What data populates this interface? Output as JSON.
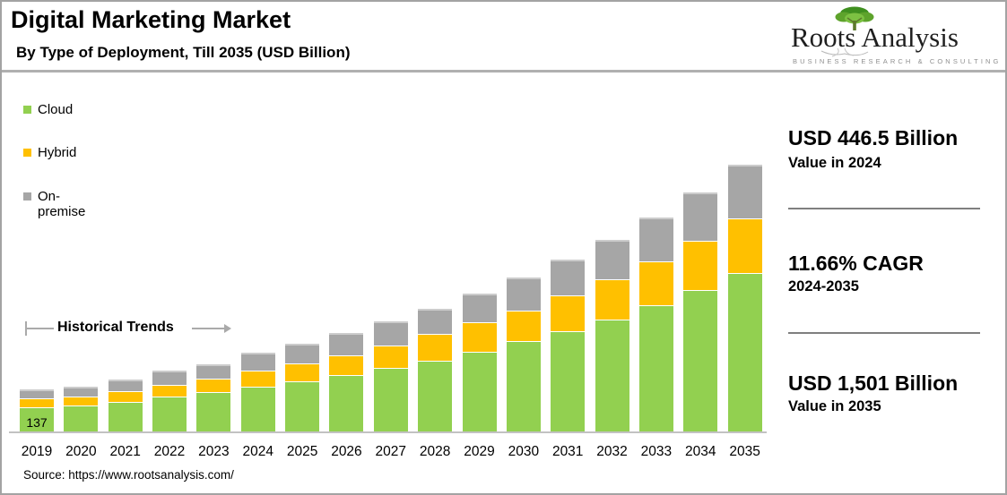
{
  "header": {
    "title": "Digital Marketing Market",
    "subtitle": "By Type of Deployment, Till 2035 (USD Billion)"
  },
  "logo": {
    "name": "Roots Analysis",
    "tagline": "BUSINESS RESEARCH & CONSULTING",
    "tree_color": "#6aa832"
  },
  "legend": [
    {
      "label": "Cloud",
      "color": "#92D050"
    },
    {
      "label": "Hybrid",
      "color": "#FFC000"
    },
    {
      "label": "On-premise",
      "color": "#A6A6A6"
    }
  ],
  "annotations": {
    "historical_trends": "Historical Trends",
    "first_bar_value_label": "137"
  },
  "stats": [
    {
      "value": "USD 446.5 Billion",
      "caption": "Value in 2024"
    },
    {
      "value": "11.66% CAGR",
      "caption": "2024-2035"
    },
    {
      "value": "USD 1,501 Billion",
      "caption": "Value in 2035"
    }
  ],
  "source": "Source: https://www.rootsanalysis.com/",
  "chart_data": {
    "type": "bar",
    "stacked": true,
    "title": "Digital Marketing Market, By Type of Deployment, Till 2035 (USD Billion)",
    "unit": "USD Billion",
    "categories": [
      2019,
      2020,
      2021,
      2022,
      2023,
      2024,
      2025,
      2026,
      2027,
      2028,
      2029,
      2030,
      2031,
      2032,
      2033,
      2034,
      2035
    ],
    "series": [
      {
        "name": "Cloud",
        "color": "#92D050",
        "values": [
          137,
          145,
          165,
          195,
          220,
          250,
          279,
          317,
          354,
          398,
          448,
          505,
          563,
          628,
          706,
          791,
          885
        ]
      },
      {
        "name": "Hybrid",
        "color": "#FFC000",
        "values": [
          48,
          50,
          60,
          67,
          78,
          89.5,
          100,
          107,
          125,
          147,
          163,
          174,
          197,
          224,
          248,
          277,
          308
        ]
      },
      {
        "name": "On-premise",
        "color": "#A6A6A6",
        "values": [
          55,
          62,
          70,
          82,
          85,
          107,
          119,
          132,
          143,
          149,
          164,
          187,
          206,
          227,
          251,
          277,
          308
        ]
      }
    ],
    "totals": [
      240,
      257,
      295,
      344,
      383,
      446.5,
      498,
      556,
      622,
      694,
      775,
      866,
      966,
      1079,
      1205,
      1345,
      1501
    ],
    "highlight_values": {
      "2024_total": 446.5,
      "cagr_2024_2035_pct": 11.66,
      "2035_total": 1501,
      "2019_cloud_label": 137
    },
    "ylim": [
      0,
      1550
    ],
    "grid": false,
    "y_axis_shown": false,
    "legend_position": "top-left"
  }
}
